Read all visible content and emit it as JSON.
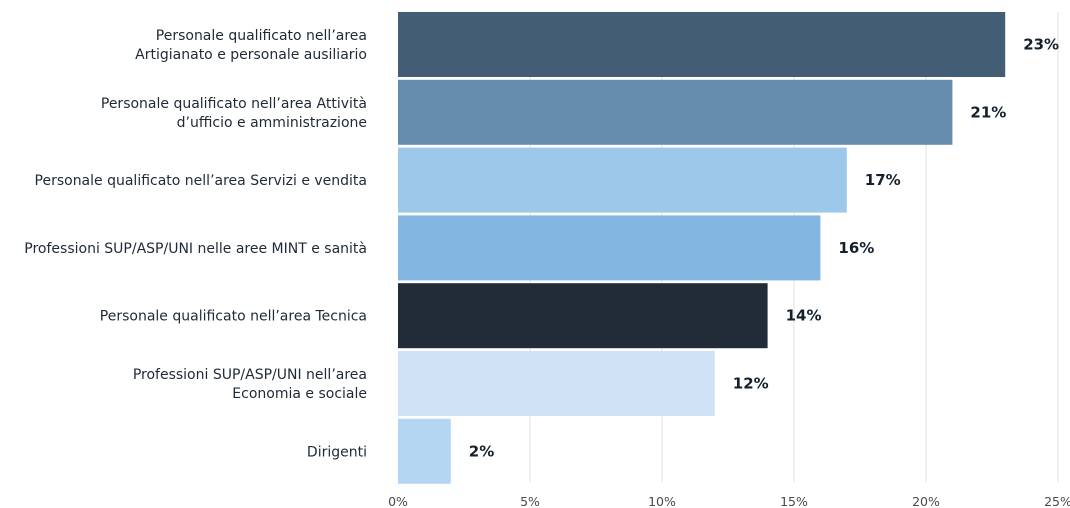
{
  "chart_data": {
    "type": "bar",
    "orientation": "horizontal",
    "title": "",
    "xlabel": "",
    "ylabel": "",
    "xlim": [
      0,
      25
    ],
    "ticks": [
      0,
      5,
      10,
      15,
      20,
      25
    ],
    "tick_labels": [
      "0%",
      "5%",
      "10%",
      "15%",
      "20%",
      "25%"
    ],
    "grid": "vertical",
    "categories": [
      [
        "Personale qualificato nell’area",
        "Artigianato e personale ausiliario"
      ],
      [
        "Personale qualificato nell’area Attività",
        "d’ufficio e amministrazione"
      ],
      [
        "Personale qualificato nell’area Servizi e vendita"
      ],
      [
        "Professioni SUP/ASP/UNI nelle aree MINT e sanità"
      ],
      [
        "Personale qualificato nell’area Tecnica"
      ],
      [
        "Professioni SUP/ASP/UNI nell’area",
        "Economia e sociale"
      ],
      [
        "Dirigenti"
      ]
    ],
    "values": [
      23,
      21,
      17,
      16,
      14,
      12,
      2
    ],
    "value_labels": [
      "23%",
      "21%",
      "17%",
      "16%",
      "14%",
      "12%",
      "2%"
    ],
    "colors": [
      "#435d75",
      "#678dae",
      "#9ec8ea",
      "#83b7e2",
      "#222c38",
      "#d0e3f6",
      "#b5d6f2"
    ]
  }
}
